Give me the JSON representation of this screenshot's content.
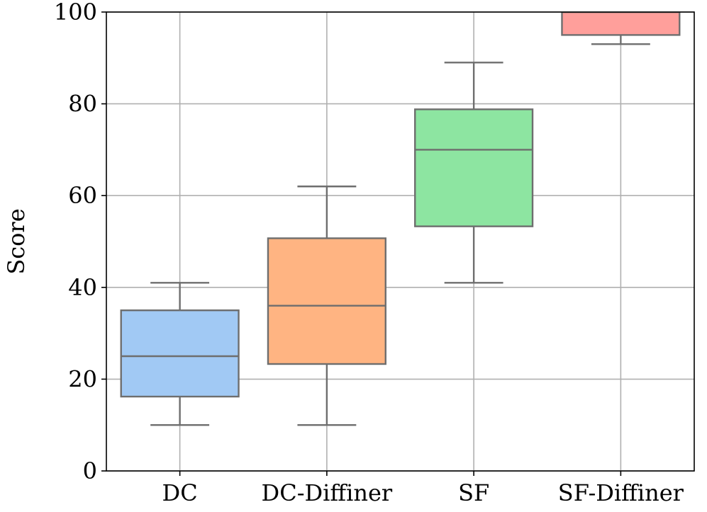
{
  "chart_data": {
    "type": "box",
    "title": "",
    "xlabel": "",
    "ylabel": "Score",
    "ylim": [
      0,
      100
    ],
    "yticks": [
      0,
      20,
      40,
      60,
      80,
      100
    ],
    "grid": true,
    "categories": [
      "DC",
      "DC-Diffiner",
      "SF",
      "SF-Diffiner"
    ],
    "boxes": [
      {
        "name": "DC",
        "whisker_low": 10,
        "q1": 16.2,
        "median": 25,
        "q3": 35,
        "whisker_high": 41,
        "color": "#a1c9f4"
      },
      {
        "name": "DC-Diffiner",
        "whisker_low": 10,
        "q1": 23.3,
        "median": 36,
        "q3": 50.7,
        "whisker_high": 62,
        "color": "#ffb482"
      },
      {
        "name": "SF",
        "whisker_low": 41,
        "q1": 53.3,
        "median": 70,
        "q3": 78.8,
        "whisker_high": 89,
        "color": "#8de5a1"
      },
      {
        "name": "SF-Diffiner",
        "whisker_low": 93,
        "q1": 95,
        "median": 100,
        "q3": 100,
        "whisker_high": 100,
        "color": "#ff9f9b"
      }
    ]
  }
}
